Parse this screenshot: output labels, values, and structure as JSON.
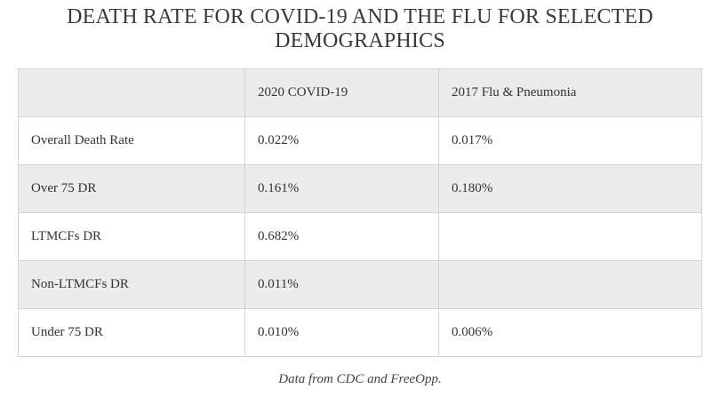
{
  "title": "DEATH RATE FOR COVID-19 AND THE FLU FOR SELECTED DEMOGRAPHICS",
  "table": {
    "headers": [
      "",
      "2020 COVID-19",
      "2017 Flu & Pneumonia"
    ],
    "rows": [
      [
        "Overall Death Rate",
        "0.022%",
        "0.017%"
      ],
      [
        "Over 75 DR",
        "0.161%",
        "0.180%"
      ],
      [
        "LTMCFs DR",
        "0.682%",
        ""
      ],
      [
        "Non-LTMCFs DR",
        "0.011%",
        ""
      ],
      [
        "Under 75 DR",
        "0.010%",
        "0.006%"
      ]
    ]
  },
  "caption": {
    "prefix": "Data from ",
    "link1": "CDC",
    "middle": " and ",
    "link2": "FreeOpp",
    "suffix": "."
  }
}
